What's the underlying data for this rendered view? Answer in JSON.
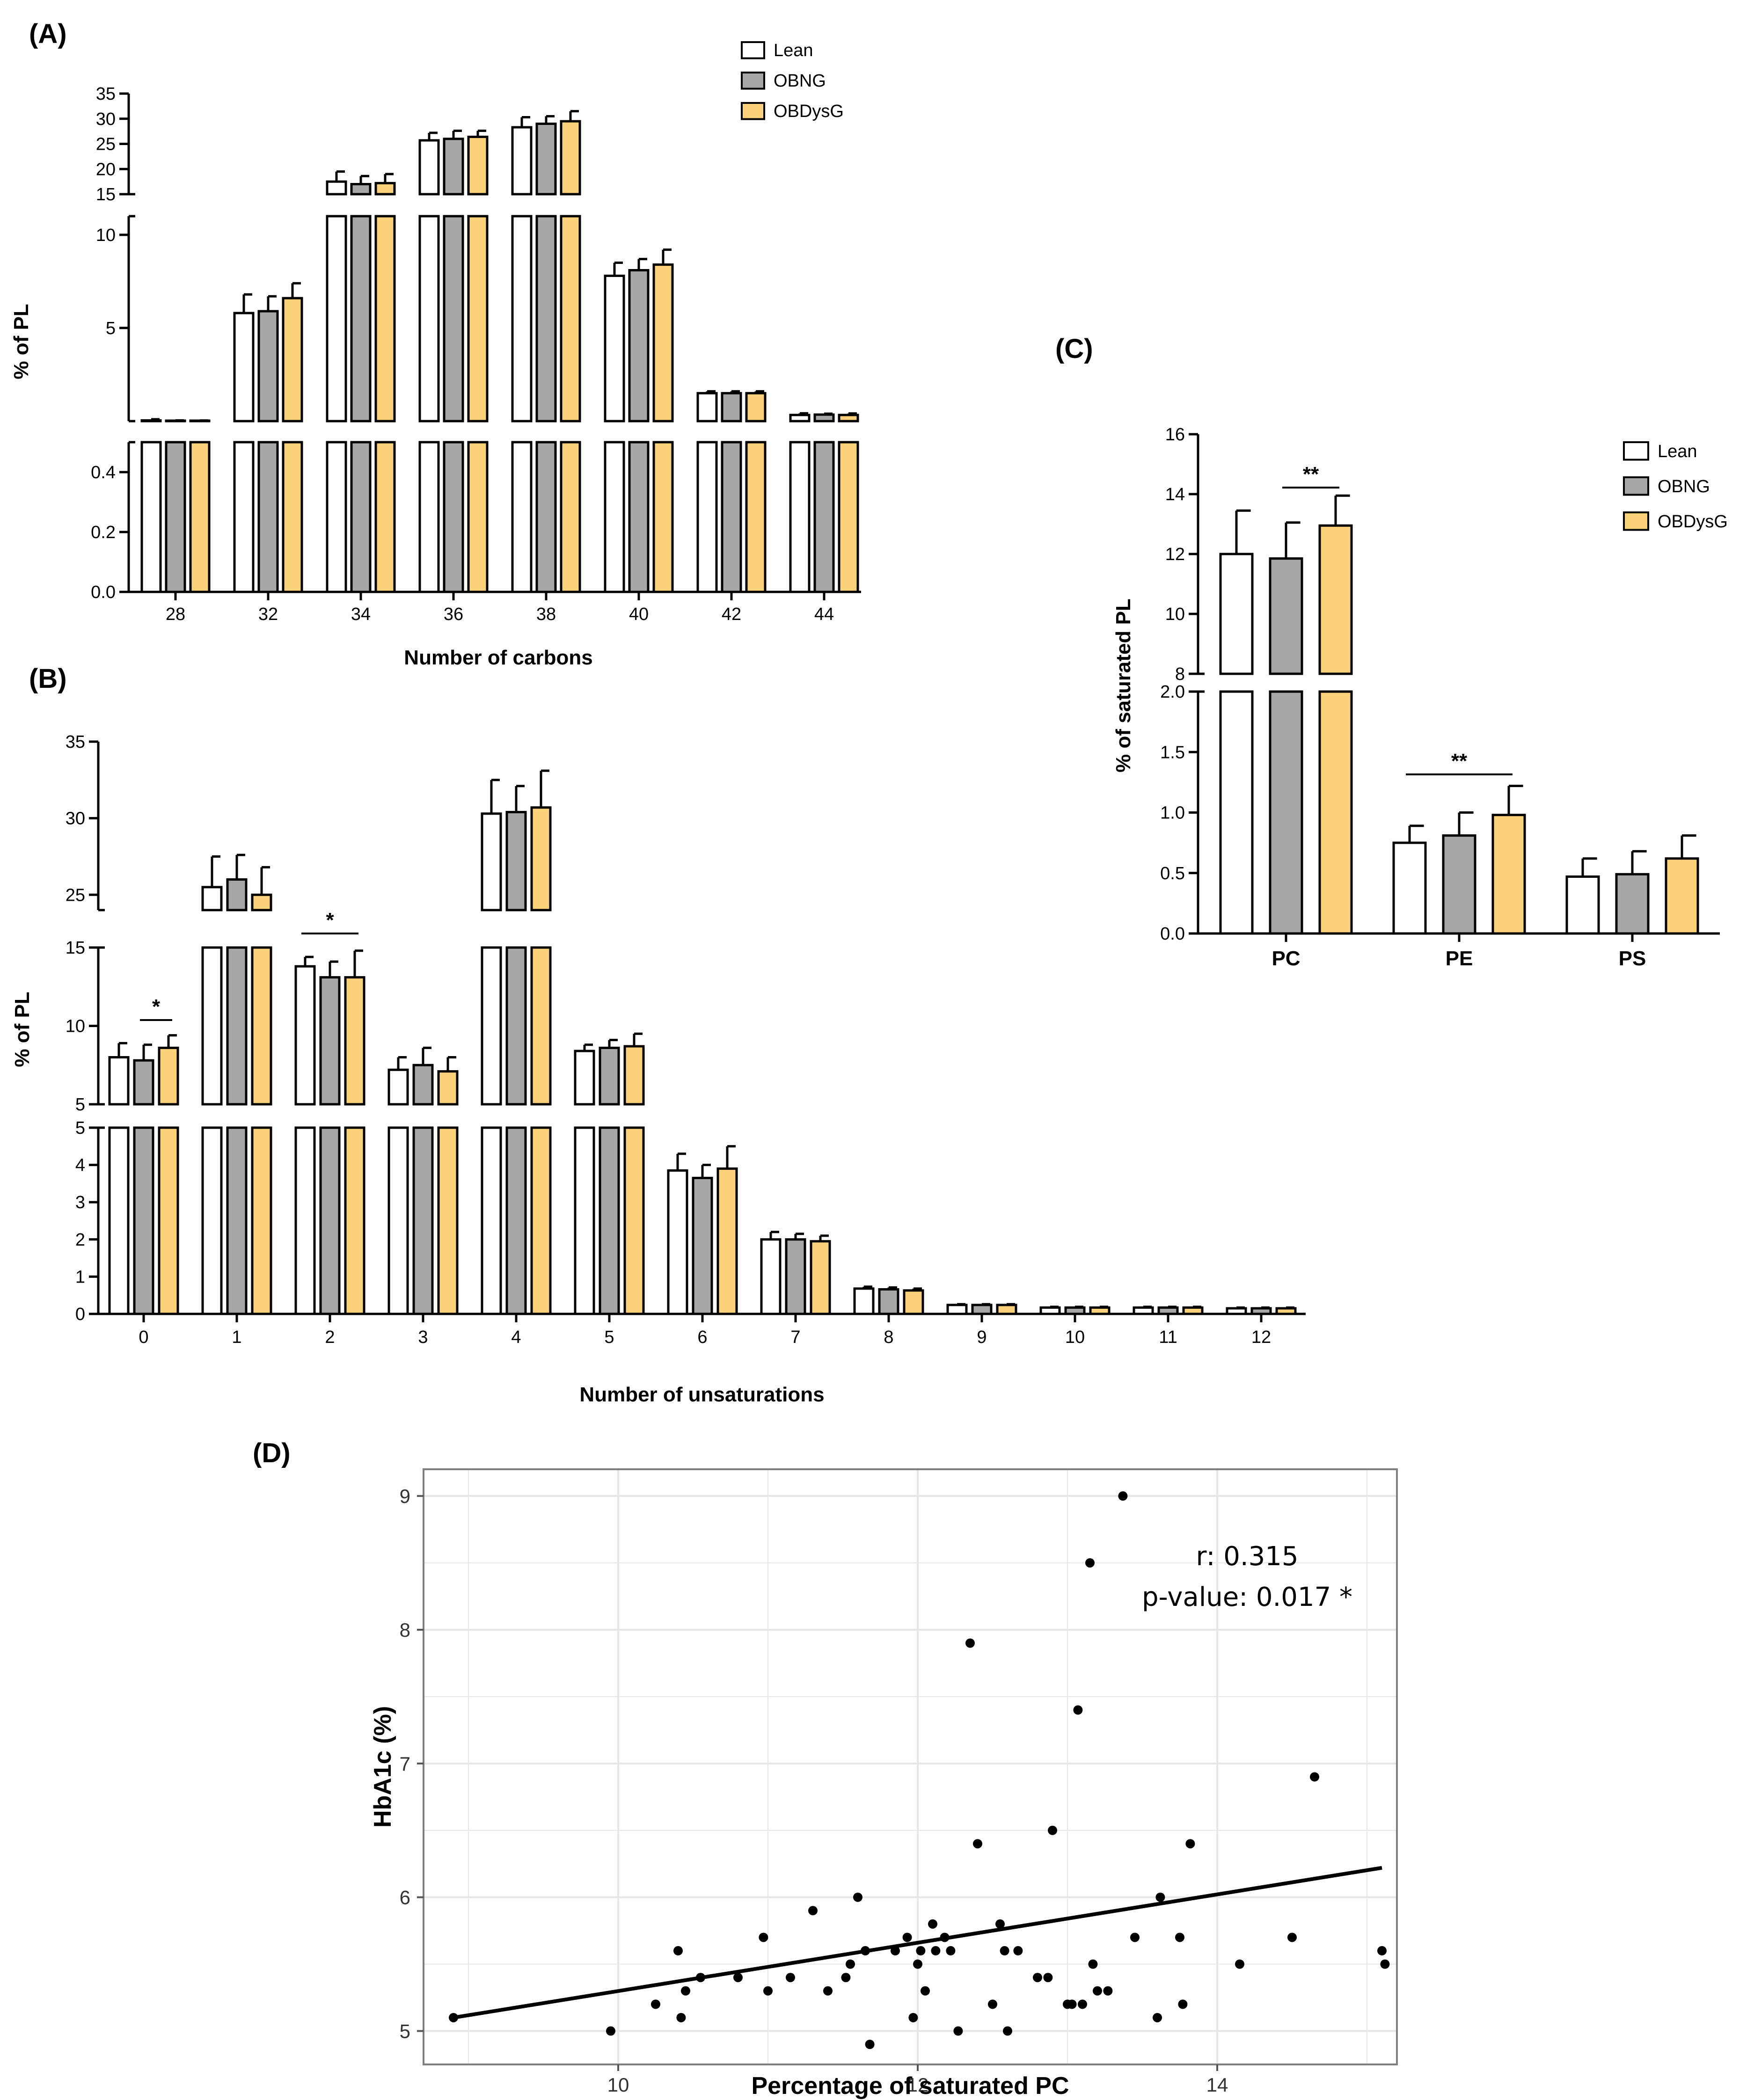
{
  "colors": {
    "lean": "#ffffff",
    "obng": "#a6a6a6",
    "obdysg": "#fbd27a",
    "axis": "#000000",
    "grid": "#e6e6e6",
    "panel_border": "#7f7f7f"
  },
  "legend": [
    "Lean",
    "OBNG",
    "OBDysG"
  ],
  "chart_data": [
    {
      "panel": "(A)",
      "type": "bar",
      "xlabel": "Number of carbons",
      "ylabel": "% of PL",
      "categories": [
        "28",
        "32",
        "34",
        "36",
        "38",
        "40",
        "42",
        "44"
      ],
      "series": [
        {
          "name": "Lean",
          "values": [
            0.04,
            5.8,
            17.5,
            25.7,
            28.3,
            7.8,
            1.5,
            0.33
          ],
          "errors": [
            0.06,
            1.0,
            2.0,
            1.5,
            2.0,
            0.7,
            0.1,
            0.09
          ]
        },
        {
          "name": "OBNG",
          "values": [
            0.025,
            5.9,
            17.0,
            26.0,
            29.0,
            8.1,
            1.5,
            0.35
          ],
          "errors": [
            0.015,
            0.8,
            1.6,
            1.6,
            1.5,
            0.6,
            0.1,
            0.05
          ]
        },
        {
          "name": "OBDysG",
          "values": [
            0.025,
            6.6,
            17.2,
            26.4,
            29.5,
            8.4,
            1.5,
            0.33
          ],
          "errors": [
            0.01,
            0.8,
            1.8,
            1.2,
            2.0,
            0.8,
            0.1,
            0.08
          ]
        }
      ],
      "y_segments": [
        {
          "range": [
            0,
            0.5
          ],
          "ticks": [
            "0.0",
            "0.2",
            "0.4"
          ]
        },
        {
          "range": [
            0,
            11
          ],
          "ticks": [
            "5",
            "10"
          ]
        },
        {
          "range": [
            15,
            35
          ],
          "ticks": [
            "15",
            "20",
            "25",
            "30",
            "35"
          ]
        }
      ]
    },
    {
      "panel": "(B)",
      "type": "bar",
      "xlabel": "Number of unsaturations",
      "ylabel": "% of PL",
      "categories": [
        "0",
        "1",
        "2",
        "3",
        "4",
        "5",
        "6",
        "7",
        "8",
        "9",
        "10",
        "11",
        "12"
      ],
      "series": [
        {
          "name": "Lean",
          "values": [
            8.0,
            25.5,
            13.8,
            7.2,
            30.3,
            8.4,
            3.85,
            2.0,
            0.68,
            0.24,
            0.17,
            0.17,
            0.15
          ],
          "errors": [
            0.9,
            2.0,
            0.6,
            0.8,
            2.2,
            0.4,
            0.45,
            0.2,
            0.05,
            0.02,
            0.02,
            0.02,
            0.02
          ]
        },
        {
          "name": "OBNG",
          "values": [
            7.8,
            26.0,
            13.1,
            7.5,
            30.4,
            8.6,
            3.65,
            2.0,
            0.66,
            0.24,
            0.17,
            0.17,
            0.15
          ],
          "errors": [
            1.0,
            1.6,
            1.0,
            1.1,
            1.7,
            0.5,
            0.35,
            0.15,
            0.05,
            0.02,
            0.02,
            0.02,
            0.02
          ]
        },
        {
          "name": "OBDysG",
          "values": [
            8.6,
            25.0,
            13.1,
            7.1,
            30.7,
            8.7,
            3.9,
            1.95,
            0.63,
            0.24,
            0.17,
            0.17,
            0.15
          ],
          "errors": [
            0.8,
            1.8,
            1.7,
            0.9,
            2.4,
            0.8,
            0.6,
            0.15,
            0.05,
            0.02,
            0.02,
            0.02,
            0.02
          ]
        }
      ],
      "y_segments": [
        {
          "range": [
            0,
            5
          ],
          "ticks": [
            "0",
            "1",
            "2",
            "3",
            "4",
            "5"
          ]
        },
        {
          "range": [
            5,
            15
          ],
          "ticks": [
            "5",
            "10",
            "15"
          ]
        },
        {
          "range": [
            24,
            35
          ],
          "ticks": [
            "25",
            "30",
            "35"
          ]
        }
      ],
      "significance": [
        {
          "category": "0",
          "pair": "OBNG vs OBDysG",
          "label": "*"
        },
        {
          "category": "2",
          "pair": "Lean vs OBDysG",
          "label": "*"
        }
      ]
    },
    {
      "panel": "(C)",
      "type": "bar",
      "ylabel": "% of saturated PL",
      "categories": [
        "PC",
        "PE",
        "PS"
      ],
      "series": [
        {
          "name": "Lean",
          "values": [
            12.0,
            0.75,
            0.47
          ],
          "errors": [
            1.45,
            0.14,
            0.15
          ]
        },
        {
          "name": "OBNG",
          "values": [
            11.85,
            0.81,
            0.49
          ],
          "errors": [
            1.2,
            0.19,
            0.19
          ]
        },
        {
          "name": "OBDysG",
          "values": [
            12.95,
            0.98,
            0.62
          ],
          "errors": [
            1.0,
            0.24,
            0.19
          ]
        }
      ],
      "y_segments": [
        {
          "range": [
            0,
            2.0
          ],
          "ticks": [
            "0.0",
            "0.5",
            "1.0",
            "1.5",
            "2.0"
          ]
        },
        {
          "range": [
            8,
            16
          ],
          "ticks": [
            "8",
            "10",
            "12",
            "14",
            "16"
          ]
        }
      ],
      "significance": [
        {
          "category": "PC",
          "pair": "OBNG vs OBDysG",
          "label": "**"
        },
        {
          "category": "PE",
          "pair": "Lean vs OBDysG",
          "label": "**"
        }
      ]
    },
    {
      "panel": "(D)",
      "type": "scatter",
      "xlabel": "Percentage of saturated PC",
      "ylabel": "HbA1c (%)",
      "xlim": [
        8.7,
        15.2
      ],
      "ylim": [
        4.75,
        9.2
      ],
      "xticks": [
        "10",
        "12",
        "14"
      ],
      "yticks": [
        "5",
        "6",
        "7",
        "8",
        "9"
      ],
      "x": [
        8.9,
        9.95,
        10.25,
        10.4,
        10.42,
        10.45,
        10.55,
        10.8,
        10.97,
        11.0,
        11.15,
        11.3,
        11.4,
        11.52,
        11.55,
        11.6,
        11.65,
        11.68,
        11.85,
        11.93,
        11.97,
        12.0,
        12.02,
        12.05,
        12.1,
        12.12,
        12.18,
        12.22,
        12.27,
        12.35,
        12.4,
        12.5,
        12.55,
        12.58,
        12.6,
        12.67,
        12.8,
        12.87,
        12.9,
        13.0,
        13.03,
        13.07,
        13.1,
        13.15,
        13.17,
        13.2,
        13.27,
        13.37,
        13.45,
        13.6,
        13.62,
        13.75,
        13.77,
        13.82,
        14.15,
        14.5,
        14.65,
        15.1,
        15.12
      ],
      "y": [
        5.1,
        5.0,
        5.2,
        5.6,
        5.1,
        5.3,
        5.4,
        5.4,
        5.7,
        5.3,
        5.4,
        5.9,
        5.3,
        5.4,
        5.5,
        6.0,
        5.6,
        4.9,
        5.6,
        5.7,
        5.1,
        5.5,
        5.6,
        5.3,
        5.8,
        5.6,
        5.7,
        5.6,
        5.0,
        7.9,
        6.4,
        5.2,
        5.8,
        5.6,
        5.0,
        5.6,
        5.4,
        5.4,
        6.5,
        5.2,
        5.2,
        7.4,
        5.2,
        8.5,
        5.5,
        5.3,
        5.3,
        9.0,
        5.7,
        5.1,
        6.0,
        5.7,
        5.2,
        6.4,
        5.5,
        5.7,
        6.9,
        5.6,
        5.5
      ],
      "fit": {
        "x": [
          8.9,
          15.1
        ],
        "y": [
          5.1,
          6.22
        ]
      },
      "annotation": {
        "r": "r: 0.315",
        "p": "p-value: 0.017 *"
      }
    }
  ]
}
